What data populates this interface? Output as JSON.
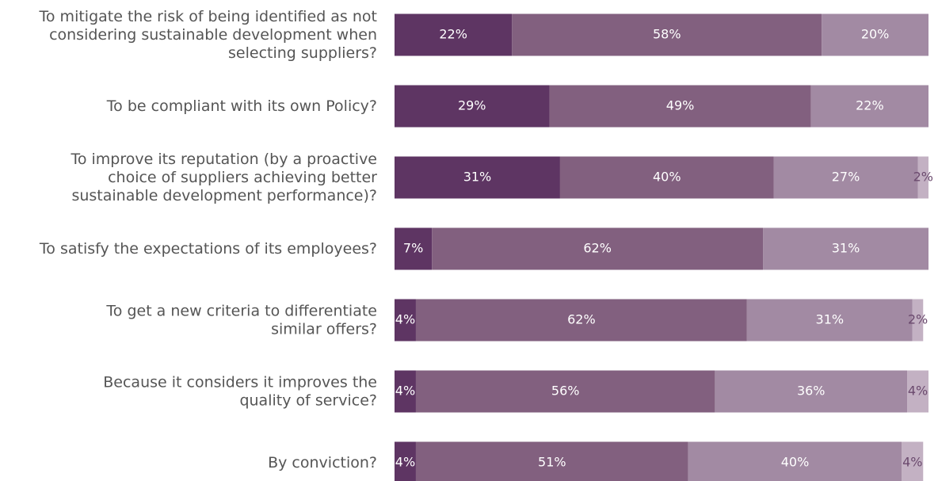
{
  "chart_data": {
    "type": "stacked-bar-horizontal",
    "categories": [
      "To mitigate the risk of being identified as not\nconsidering sustainable development when\nselecting suppliers?",
      "To be compliant with its own Policy?",
      "To improve its reputation (by a proactive\nchoice of suppliers achieving better\nsustainable development performance)?",
      "To satisfy the expectations of its employees?",
      "To get a new criteria to differentiate\nsimilar offers?",
      "Because it considers it improves the\nquality of service?",
      "By conviction?"
    ],
    "xlim": [
      0,
      100
    ],
    "series": [
      {
        "color": "#5e3563",
        "label_color": "#ffffff",
        "values": [
          22,
          29,
          31,
          7,
          4,
          4,
          4
        ],
        "value_labels": [
          "22%",
          "29%",
          "31%",
          "7%",
          "4%",
          "4%",
          "4%"
        ]
      },
      {
        "color": "#82607f",
        "label_color": "#ffffff",
        "values": [
          58,
          49,
          40,
          62,
          62,
          56,
          51
        ],
        "value_labels": [
          "58%",
          "49%",
          "40%",
          "62%",
          "62%",
          "56%",
          "51%"
        ]
      },
      {
        "color": "#a28aa3",
        "label_color": "#ffffff",
        "values": [
          20,
          22,
          27,
          31,
          31,
          36,
          40
        ],
        "value_labels": [
          "20%",
          "22%",
          "27%",
          "31%",
          "31%",
          "36%",
          "40%"
        ]
      },
      {
        "color": "#c3b1c3",
        "label_color": "#6b4a6e",
        "values": [
          null,
          null,
          2,
          null,
          2,
          4,
          4
        ],
        "value_labels": [
          null,
          null,
          "2%",
          null,
          "2%",
          "4%",
          "4%"
        ]
      }
    ]
  }
}
